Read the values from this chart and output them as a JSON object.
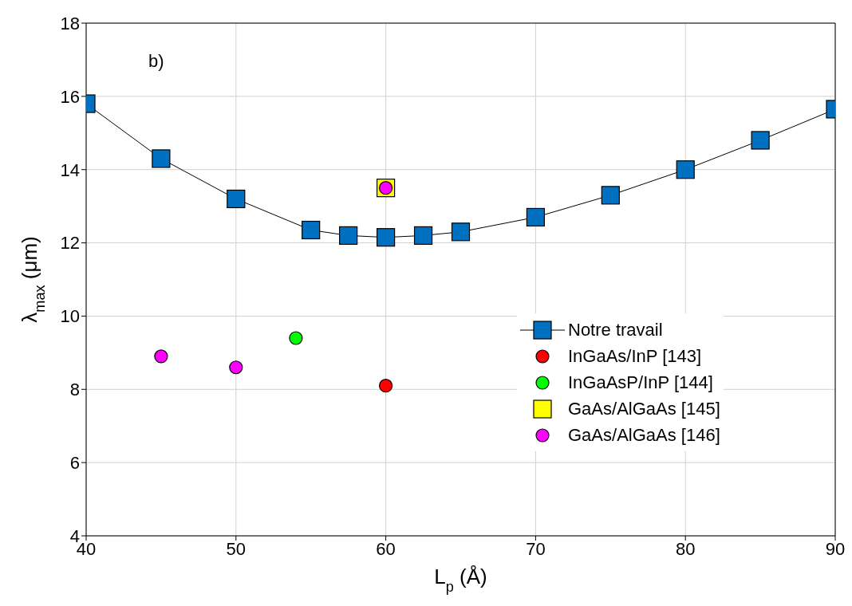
{
  "chart_data": {
    "type": "scatter",
    "xlabel": "L$_{p}$ (Å)",
    "ylabel": "λ$_{max}$ (μm)",
    "annotations": [
      "b)"
    ],
    "xlim": [
      40,
      90
    ],
    "xticks": [
      40,
      50,
      60,
      70,
      80,
      90
    ],
    "ylim": [
      4,
      18
    ],
    "yticks": [
      4,
      6,
      8,
      10,
      12,
      14,
      16,
      18
    ],
    "grid": true,
    "legend": "right",
    "series": [
      {
        "name": "Notre travail",
        "type": "line",
        "marker": "square",
        "color": "#0070c0",
        "x": [
          40,
          45,
          50,
          55,
          57.5,
          60,
          62.5,
          65,
          70,
          75,
          80,
          85,
          90
        ],
        "values": [
          15.8,
          14.3,
          13.2,
          12.35,
          12.2,
          12.15,
          12.2,
          12.3,
          12.7,
          13.3,
          14.0,
          14.8,
          15.65
        ]
      },
      {
        "name": "InGaAs/InP [143]",
        "type": "scatter",
        "marker": "circle",
        "color": "#ff0000",
        "x": [
          60
        ],
        "values": [
          8.1
        ]
      },
      {
        "name": "InGaAsP/InP [144]",
        "type": "scatter",
        "marker": "circle",
        "color": "#00ff00",
        "x": [
          54
        ],
        "values": [
          9.4
        ]
      },
      {
        "name": "GaAs/AlGaAs [145]",
        "type": "scatter",
        "marker": "square",
        "color": "#ffff00",
        "x": [
          60
        ],
        "values": [
          13.5
        ]
      },
      {
        "name": "GaAs/AlGaAs [146]",
        "type": "scatter",
        "marker": "circle",
        "color": "#ff00ff",
        "x": [
          45,
          50,
          60
        ],
        "values": [
          8.9,
          8.6,
          13.5
        ]
      }
    ]
  }
}
